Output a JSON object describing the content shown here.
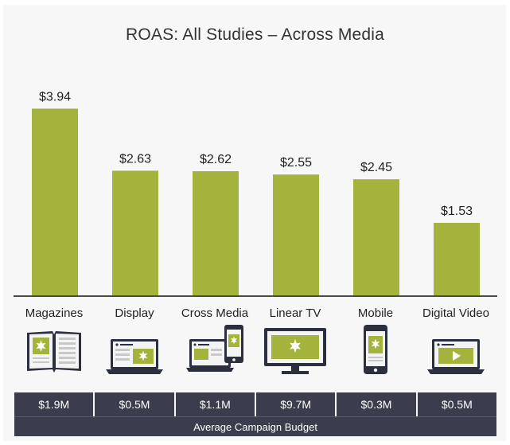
{
  "chart_data": {
    "type": "bar",
    "title": "ROAS: All Studies – Across Media",
    "categories": [
      "Magazines",
      "Display",
      "Cross Media",
      "Linear TV",
      "Mobile",
      "Digital Video"
    ],
    "values": [
      3.94,
      2.63,
      2.62,
      2.55,
      2.45,
      1.53
    ],
    "value_labels": [
      "$3.94",
      "$2.63",
      "$2.62",
      "$2.55",
      "$2.45",
      "$1.53"
    ],
    "ylim": [
      0,
      4.2
    ],
    "bar_color": "#a4b33c",
    "grid": false
  },
  "budget": {
    "values": [
      "$1.9M",
      "$0.5M",
      "$1.1M",
      "$9.7M",
      "$0.3M",
      "$0.5M"
    ],
    "label": "Average Campaign Budget",
    "bg_color": "#3a3d4e"
  },
  "icons": [
    "magazine-icon",
    "laptop-icon",
    "cross-media-devices-icon",
    "tv-icon",
    "mobile-phone-icon",
    "laptop-video-icon"
  ]
}
